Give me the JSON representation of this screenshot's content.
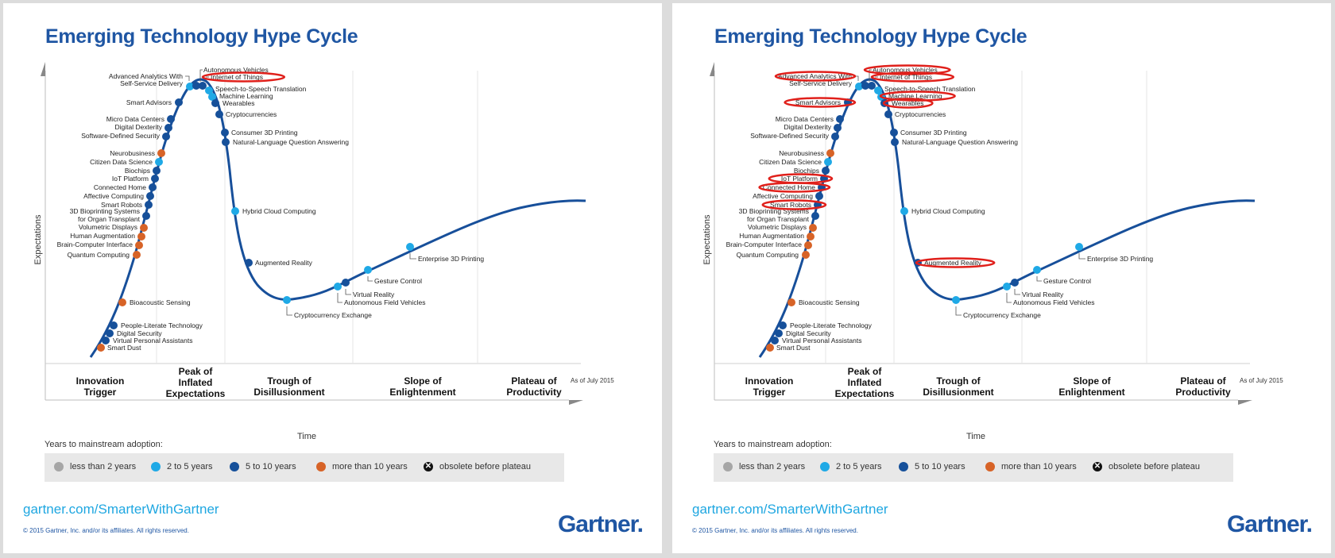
{
  "panels": [
    {
      "id": "left",
      "highlight_color": "#e0201b"
    },
    {
      "id": "right",
      "highlight_color": "#e0201b"
    }
  ],
  "title": "Emerging Technology Hype Cycle",
  "as_of": "As of July 2015",
  "years_label": "Years to mainstream adoption:",
  "footer": {
    "url": "gartner.com/SmarterWithGartner",
    "copyright": "© 2015 Gartner, Inc. and/or its affiliates. All rights reserved.",
    "logo": "Gartner",
    "logo_dot": "."
  },
  "colors": {
    "curve": "#174f9a",
    "less_than_2": "#a6a6a6",
    "2_to_5": "#1fa9e6",
    "5_to_10": "#16509a",
    "more_than_10": "#d76327",
    "obsolete": "#111111",
    "title": "#1f56a3"
  },
  "legend": [
    {
      "key": "less_than_2",
      "label": "less than 2 years",
      "icon": "circle-gray"
    },
    {
      "key": "2_to_5",
      "label": "2 to 5 years",
      "icon": "circle-light-blue"
    },
    {
      "key": "5_to_10",
      "label": "5 to 10 years",
      "icon": "circle-dark-blue"
    },
    {
      "key": "more_than_10",
      "label": "more than 10 years",
      "icon": "circle-orange"
    },
    {
      "key": "obsolete",
      "label": "obsolete before plateau",
      "icon": "circle-x"
    }
  ],
  "chart_data": {
    "type": "scatter",
    "title": "Emerging Technology Hype Cycle",
    "xlabel": "Time",
    "ylabel": "Expectations",
    "grid": true,
    "phases": [
      "Innovation Trigger",
      "Peak of Inflated Expectations",
      "Trough of Disillusionment",
      "Slope of Enlightenment",
      "Plateau of Productivity"
    ],
    "phase_lines": [
      "Innovation",
      "Trigger",
      "Peak of",
      "Inflated",
      "Expectations",
      "Trough of",
      "Disillusionment",
      "Slope of",
      "Enlightenment",
      "Plateau of",
      "Productivity"
    ],
    "technologies": [
      {
        "name": "Smart Dust",
        "phase": "Innovation Trigger",
        "adoption": "more_than_10",
        "t": 0.02
      },
      {
        "name": "Virtual Personal Assistants",
        "phase": "Innovation Trigger",
        "adoption": "5_to_10",
        "t": 0.03
      },
      {
        "name": "Digital Security",
        "phase": "Innovation Trigger",
        "adoption": "5_to_10",
        "t": 0.04
      },
      {
        "name": "People-Literate Technology",
        "phase": "Innovation Trigger",
        "adoption": "5_to_10",
        "t": 0.05
      },
      {
        "name": "Bioacoustic Sensing",
        "phase": "Innovation Trigger",
        "adoption": "more_than_10",
        "t": 0.07
      },
      {
        "name": "Quantum Computing",
        "phase": "Innovation Trigger",
        "adoption": "more_than_10",
        "t": 0.1
      },
      {
        "name": "Brain-Computer Interface",
        "phase": "Innovation Trigger",
        "adoption": "more_than_10",
        "t": 0.11
      },
      {
        "name": "Human Augmentation",
        "phase": "Innovation Trigger",
        "adoption": "more_than_10",
        "t": 0.115
      },
      {
        "name": "Volumetric Displays",
        "phase": "Innovation Trigger",
        "adoption": "more_than_10",
        "t": 0.12
      },
      {
        "name": "3D Bioprinting Systems for Organ Transplant",
        "phase": "Innovation Trigger",
        "adoption": "5_to_10",
        "t": 0.125
      },
      {
        "name": "Smart Robots",
        "phase": "Innovation Trigger",
        "adoption": "5_to_10",
        "t": 0.13
      },
      {
        "name": "Affective Computing",
        "phase": "Innovation Trigger",
        "adoption": "5_to_10",
        "t": 0.135
      },
      {
        "name": "Connected Home",
        "phase": "Innovation Trigger",
        "adoption": "5_to_10",
        "t": 0.14
      },
      {
        "name": "IoT Platform",
        "phase": "Innovation Trigger",
        "adoption": "5_to_10",
        "t": 0.145
      },
      {
        "name": "Biochips",
        "phase": "Innovation Trigger",
        "adoption": "5_to_10",
        "t": 0.15
      },
      {
        "name": "Citizen Data Science",
        "phase": "Innovation Trigger",
        "adoption": "2_to_5",
        "t": 0.155
      },
      {
        "name": "Neurobusiness",
        "phase": "Innovation Trigger",
        "adoption": "more_than_10",
        "t": 0.16
      },
      {
        "name": "Software-Defined Security",
        "phase": "Innovation Trigger",
        "adoption": "5_to_10",
        "t": 0.165
      },
      {
        "name": "Digital Dexterity",
        "phase": "Innovation Trigger",
        "adoption": "5_to_10",
        "t": 0.17
      },
      {
        "name": "Micro Data Centers",
        "phase": "Innovation Trigger",
        "adoption": "5_to_10",
        "t": 0.175
      },
      {
        "name": "Smart Advisors",
        "phase": "Peak of Inflated Expectations",
        "adoption": "5_to_10",
        "t": 0.19
      },
      {
        "name": "Advanced Analytics With Self-Service Delivery",
        "phase": "Peak of Inflated Expectations",
        "adoption": "2_to_5",
        "t": 0.2
      },
      {
        "name": "Autonomous Vehicles",
        "phase": "Peak of Inflated Expectations",
        "adoption": "5_to_10",
        "t": 0.21
      },
      {
        "name": "Internet of Things",
        "phase": "Peak of Inflated Expectations",
        "adoption": "5_to_10",
        "t": 0.22
      },
      {
        "name": "Speech-to-Speech Translation",
        "phase": "Peak of Inflated Expectations",
        "adoption": "2_to_5",
        "t": 0.23
      },
      {
        "name": "Machine Learning",
        "phase": "Peak of Inflated Expectations",
        "adoption": "2_to_5",
        "t": 0.235
      },
      {
        "name": "Wearables",
        "phase": "Peak of Inflated Expectations",
        "adoption": "5_to_10",
        "t": 0.24
      },
      {
        "name": "Cryptocurrencies",
        "phase": "Peak of Inflated Expectations",
        "adoption": "5_to_10",
        "t": 0.25
      },
      {
        "name": "Consumer 3D Printing",
        "phase": "Peak of Inflated Expectations",
        "adoption": "5_to_10",
        "t": 0.26
      },
      {
        "name": "Natural-Language Question Answering",
        "phase": "Peak of Inflated Expectations",
        "adoption": "5_to_10",
        "t": 0.265
      },
      {
        "name": "Hybrid Cloud Computing",
        "phase": "Trough of Disillusionment",
        "adoption": "2_to_5",
        "t": 0.29
      },
      {
        "name": "Augmented Reality",
        "phase": "Trough of Disillusionment",
        "adoption": "5_to_10",
        "t": 0.32
      },
      {
        "name": "Cryptocurrency Exchange",
        "phase": "Trough of Disillusionment",
        "adoption": "2_to_5",
        "t": 0.38
      },
      {
        "name": "Autonomous Field Vehicles",
        "phase": "Trough of Disillusionment",
        "adoption": "2_to_5",
        "t": 0.46
      },
      {
        "name": "Virtual Reality",
        "phase": "Slope of Enlightenment",
        "adoption": "5_to_10",
        "t": 0.475
      },
      {
        "name": "Gesture Control",
        "phase": "Slope of Enlightenment",
        "adoption": "2_to_5",
        "t": 0.51
      },
      {
        "name": "Enterprise 3D Printing",
        "phase": "Slope of Enlightenment",
        "adoption": "2_to_5",
        "t": 0.59
      }
    ]
  },
  "right_panel_highlights": [
    "Advanced Analytics With Self-Service Delivery",
    "Autonomous Vehicles",
    "Internet of Things",
    "Machine Learning",
    "Wearables",
    "Smart Advisors",
    "IoT Platform",
    "Connected Home",
    "Smart Robots",
    "Augmented Reality"
  ],
  "left_panel_highlights": [
    "Internet of Things"
  ]
}
